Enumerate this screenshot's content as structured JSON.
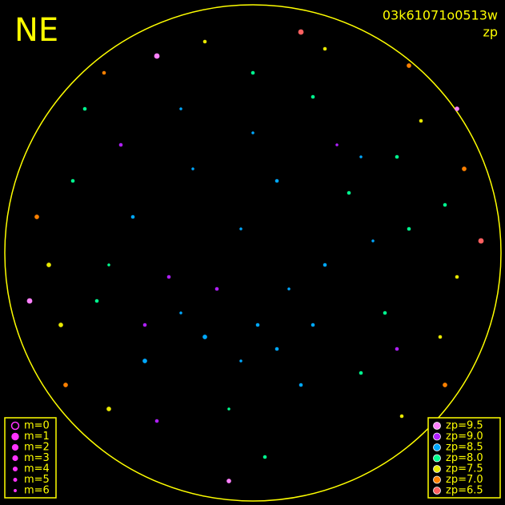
{
  "chart_data": {
    "type": "scatter",
    "title": "NE",
    "subtitle": "03k61071o0513w",
    "color_label": "zp",
    "xlim": [
      -1,
      1
    ],
    "ylim": [
      -1,
      1
    ],
    "frame_color": "#ffff00",
    "size_legend": {
      "color": "#ff33ff",
      "items": [
        {
          "value": 0,
          "label": "m=0"
        },
        {
          "value": 1,
          "label": "m=1"
        },
        {
          "value": 2,
          "label": "m=2"
        },
        {
          "value": 3,
          "label": "m=3"
        },
        {
          "value": 4,
          "label": "m=4"
        },
        {
          "value": 5,
          "label": "m=5"
        },
        {
          "value": 6,
          "label": "m=6"
        }
      ]
    },
    "color_legend": [
      {
        "value": 9.5,
        "label": "zp=9.5",
        "color": "#ff80ff"
      },
      {
        "value": 9.0,
        "label": "zp=9.0",
        "color": "#b020ff"
      },
      {
        "value": 8.5,
        "label": "zp=8.5",
        "color": "#00a8ff"
      },
      {
        "value": 8.0,
        "label": "zp=8.0",
        "color": "#00ff90"
      },
      {
        "value": 7.5,
        "label": "zp=7.5",
        "color": "#e8e800"
      },
      {
        "value": 7.0,
        "label": "zp=7.0",
        "color": "#ff8000"
      },
      {
        "value": 6.5,
        "label": "zp=6.5",
        "color": "#ff6060"
      }
    ],
    "stars": {
      "x": [
        0.02,
        -0.2,
        0.15,
        -0.35,
        0.3,
        -0.05,
        0.1,
        -0.25,
        0.4,
        -0.5,
        0.55,
        -0.45,
        0.2,
        -0.1,
        0.45,
        -0.65,
        0.65,
        -0.3,
        0.25,
        0.0,
        -0.15,
        0.35,
        -0.55,
        0.6,
        -0.4,
        0.05,
        -0.75,
        0.8,
        -0.8,
        0.78,
        0.85,
        -0.85,
        0.7,
        -0.7,
        -0.6,
        0.62,
        0.3,
        -0.2,
        0.88,
        -0.9,
        0.65,
        -0.62,
        0.8,
        -0.78,
        0.2,
        -0.4,
        0.85,
        -0.93,
        0.95,
        -0.1,
        0.5,
        -0.05,
        0.1,
        -0.3,
        0.25,
        -0.6,
        0.45,
        0.6,
        -0.45,
        0.0
      ],
      "y": [
        -0.3,
        -0.35,
        -0.15,
        -0.1,
        -0.05,
        0.1,
        0.3,
        0.35,
        0.25,
        0.15,
        -0.25,
        -0.45,
        -0.55,
        -0.65,
        -0.5,
        -0.2,
        0.1,
        0.6,
        0.65,
        0.5,
        -0.15,
        0.45,
        0.45,
        -0.4,
        -0.7,
        -0.85,
        0.3,
        0.2,
        -0.3,
        -0.35,
        -0.1,
        -0.05,
        0.55,
        0.6,
        -0.65,
        -0.68,
        0.85,
        0.88,
        0.35,
        0.15,
        0.78,
        0.75,
        -0.55,
        -0.55,
        0.92,
        0.82,
        0.6,
        -0.2,
        0.05,
        -0.95,
        0.05,
        -0.45,
        -0.4,
        -0.25,
        -0.3,
        -0.05,
        0.4,
        0.4,
        -0.3,
        0.75
      ],
      "zp": [
        8.6,
        8.7,
        8.5,
        8.8,
        8.4,
        8.6,
        8.3,
        8.5,
        8.2,
        8.4,
        8.1,
        8.6,
        8.3,
        8.2,
        8.2,
        8.1,
        8.0,
        8.3,
        8.1,
        8.4,
        9.0,
        9.1,
        8.9,
        9.0,
        9.2,
        8.0,
        7.9,
        7.8,
        7.7,
        7.6,
        7.4,
        7.3,
        7.5,
        7.8,
        7.6,
        7.4,
        7.7,
        7.5,
        7.0,
        6.8,
        7.0,
        6.9,
        6.8,
        7.1,
        6.6,
        9.5,
        9.5,
        9.5,
        6.7,
        9.5,
        8.3,
        8.5,
        8.7,
        8.6,
        8.4,
        8.2,
        8.3,
        7.9,
        8.9,
        8.1
      ],
      "m": [
        4,
        3,
        5,
        4,
        4,
        5,
        4,
        5,
        4,
        4,
        4,
        3,
        4,
        5,
        4,
        4,
        4,
        5,
        4,
        5,
        4,
        5,
        4,
        4,
        4,
        4,
        4,
        4,
        3,
        4,
        4,
        3,
        4,
        4,
        3,
        4,
        4,
        4,
        3,
        3,
        3,
        4,
        3,
        3,
        2,
        2,
        3,
        2,
        2,
        3,
        5,
        5,
        4,
        5,
        4,
        5,
        5,
        4,
        4,
        4
      ]
    }
  }
}
